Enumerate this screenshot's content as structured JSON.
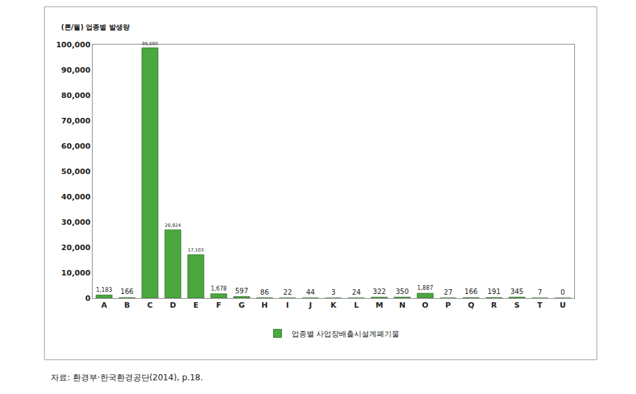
{
  "chart_data": {
    "type": "bar",
    "y_label": "(톤/월) 업종별 발생량",
    "categories": [
      "A",
      "B",
      "C",
      "D",
      "E",
      "F",
      "G",
      "H",
      "I",
      "J",
      "K",
      "L",
      "M",
      "N",
      "O",
      "P",
      "Q",
      "R",
      "S",
      "T",
      "U"
    ],
    "series": [
      {
        "name": "업종별 사업장배출시설계폐기물",
        "color": "#4aa83e",
        "values": [
          1183,
          166,
          98690,
          26924,
          17103,
          1678,
          597,
          86,
          22,
          44,
          3,
          24,
          322,
          350,
          1887,
          27,
          166,
          191,
          345,
          7,
          0
        ],
        "value_labels": [
          "1,183",
          "166",
          "98,690",
          "26,924",
          "17,103",
          "1,678",
          "597",
          "86",
          "22",
          "44",
          "3",
          "24",
          "322",
          "350",
          "1,887",
          "27",
          "166",
          "191",
          "345",
          "7",
          "0"
        ]
      }
    ],
    "ylim": [
      0,
      100000
    ],
    "yticks": [
      0,
      {
        "value": 10000,
        "label": "10,000"
      },
      {
        "value": 20000,
        "label": "20,000"
      },
      {
        "value": 30000,
        "label": "30,000"
      },
      {
        "value": 40000,
        "label": "40,000"
      },
      {
        "value": 50000,
        "label": "50,000"
      },
      {
        "value": 60000,
        "label": "60,000"
      },
      {
        "value": 70000,
        "label": "70,000"
      },
      {
        "value": 80000,
        "label": "80,000"
      },
      {
        "value": 90000,
        "label": "90,000"
      },
      {
        "value": 100000,
        "label": "100,000"
      }
    ],
    "grid": false,
    "data_labels": true,
    "legend": "bottom",
    "annotations": [
      "자료: 환경부·한국환경공단(2014), p.18."
    ]
  }
}
